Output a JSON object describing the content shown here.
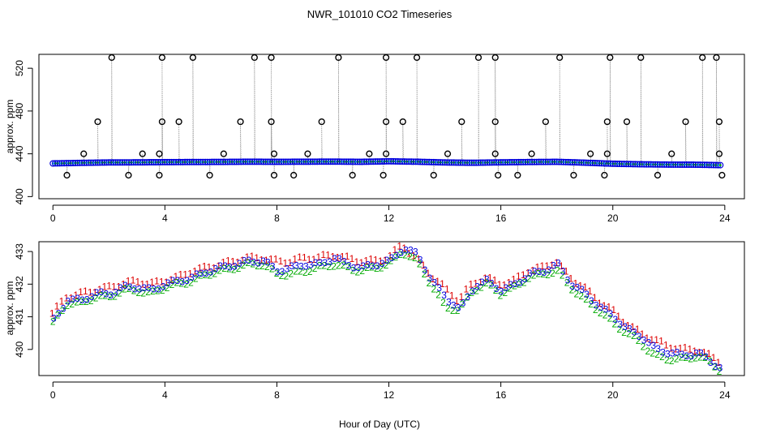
{
  "chart_data": {
    "title": "NWR_101010  CO2 Timeseries",
    "xlabel": "Hour of Day (UTC)",
    "panels": [
      {
        "id": "top",
        "type": "scatter",
        "ylabel": "approx. ppm",
        "xlim": [
          -0.5,
          24.7
        ],
        "ylim": [
          398,
          533
        ],
        "x_ticks": [
          0,
          4,
          8,
          12,
          16,
          20,
          24
        ],
        "y_ticks": [
          400,
          440,
          480,
          520
        ],
        "baseline": {
          "x": [
            0,
            1,
            2,
            3,
            4,
            5,
            6,
            7,
            8,
            9,
            10,
            11,
            12,
            13,
            14,
            15,
            16,
            17,
            18,
            19,
            20,
            21,
            22,
            23,
            23.8
          ],
          "y": [
            431.0,
            431.5,
            431.9,
            432.0,
            432.2,
            432.3,
            432.4,
            432.6,
            432.5,
            432.6,
            432.7,
            432.5,
            433.0,
            432.6,
            431.9,
            431.6,
            432.0,
            432.3,
            432.5,
            431.7,
            430.7,
            430.2,
            429.9,
            429.8,
            429.4
          ]
        },
        "spikes": [
          {
            "x": 0.5,
            "y": 420
          },
          {
            "x": 1.1,
            "y": 440
          },
          {
            "x": 1.6,
            "y": 470
          },
          {
            "x": 2.1,
            "y": 530
          },
          {
            "x": 2.7,
            "y": 420
          },
          {
            "x": 3.2,
            "y": 440
          },
          {
            "x": 3.8,
            "y": 420
          },
          {
            "x": 3.8,
            "y": 440
          },
          {
            "x": 3.9,
            "y": 470
          },
          {
            "x": 3.9,
            "y": 530
          },
          {
            "x": 4.5,
            "y": 470
          },
          {
            "x": 5.0,
            "y": 530
          },
          {
            "x": 5.6,
            "y": 420
          },
          {
            "x": 6.1,
            "y": 440
          },
          {
            "x": 6.7,
            "y": 470
          },
          {
            "x": 7.2,
            "y": 530
          },
          {
            "x": 7.8,
            "y": 530
          },
          {
            "x": 7.8,
            "y": 470
          },
          {
            "x": 7.9,
            "y": 440
          },
          {
            "x": 7.9,
            "y": 420
          },
          {
            "x": 8.6,
            "y": 420
          },
          {
            "x": 9.1,
            "y": 440
          },
          {
            "x": 9.6,
            "y": 470
          },
          {
            "x": 10.2,
            "y": 530
          },
          {
            "x": 10.7,
            "y": 420
          },
          {
            "x": 11.3,
            "y": 440
          },
          {
            "x": 11.8,
            "y": 420
          },
          {
            "x": 11.9,
            "y": 440
          },
          {
            "x": 11.9,
            "y": 470
          },
          {
            "x": 11.9,
            "y": 530
          },
          {
            "x": 12.5,
            "y": 470
          },
          {
            "x": 13.0,
            "y": 530
          },
          {
            "x": 13.6,
            "y": 420
          },
          {
            "x": 14.1,
            "y": 440
          },
          {
            "x": 14.6,
            "y": 470
          },
          {
            "x": 15.2,
            "y": 530
          },
          {
            "x": 15.8,
            "y": 530
          },
          {
            "x": 15.8,
            "y": 470
          },
          {
            "x": 15.8,
            "y": 440
          },
          {
            "x": 15.9,
            "y": 420
          },
          {
            "x": 16.6,
            "y": 420
          },
          {
            "x": 17.1,
            "y": 440
          },
          {
            "x": 17.6,
            "y": 470
          },
          {
            "x": 18.1,
            "y": 530
          },
          {
            "x": 18.6,
            "y": 420
          },
          {
            "x": 19.2,
            "y": 440
          },
          {
            "x": 19.7,
            "y": 420
          },
          {
            "x": 19.8,
            "y": 440
          },
          {
            "x": 19.8,
            "y": 470
          },
          {
            "x": 19.9,
            "y": 530
          },
          {
            "x": 20.5,
            "y": 470
          },
          {
            "x": 21.0,
            "y": 530
          },
          {
            "x": 21.6,
            "y": 420
          },
          {
            "x": 22.1,
            "y": 440
          },
          {
            "x": 22.6,
            "y": 470
          },
          {
            "x": 23.2,
            "y": 530
          },
          {
            "x": 23.7,
            "y": 530
          },
          {
            "x": 23.8,
            "y": 470
          },
          {
            "x": 23.8,
            "y": 440
          },
          {
            "x": 23.9,
            "y": 420
          }
        ]
      },
      {
        "id": "bottom",
        "type": "scatter",
        "ylabel": "approx. ppm",
        "xlim": [
          -0.5,
          24.7
        ],
        "ylim": [
          429.2,
          433.3
        ],
        "x_ticks": [
          0,
          4,
          8,
          12,
          16,
          20,
          24
        ],
        "y_ticks": [
          430,
          431,
          432,
          433
        ],
        "series": [
          {
            "name": "1",
            "color": "#dd0000",
            "x": [
              0,
              0.5,
              1,
              1.5,
              2,
              2.5,
              3,
              3.5,
              4,
              4.5,
              5,
              5.5,
              6,
              6.5,
              7,
              7.5,
              8,
              8.5,
              9,
              9.5,
              10,
              10.5,
              11,
              11.5,
              12,
              12.5,
              13,
              13.5,
              14,
              14.5,
              15,
              15.5,
              16,
              16.5,
              17,
              17.5,
              18,
              18.5,
              19,
              19.5,
              20,
              20.5,
              21,
              21.5,
              22,
              22.5,
              23,
              23.5,
              23.9
            ],
            "y": [
              431.1,
              431.6,
              431.7,
              431.8,
              431.9,
              432.0,
              432.1,
              432.0,
              432.1,
              432.2,
              432.4,
              432.5,
              432.6,
              432.7,
              432.8,
              432.8,
              432.7,
              432.7,
              432.8,
              432.8,
              432.9,
              432.8,
              432.7,
              432.7,
              432.8,
              433.2,
              432.8,
              432.3,
              431.9,
              431.5,
              432.0,
              432.2,
              432.0,
              432.1,
              432.4,
              432.5,
              432.7,
              432.2,
              431.9,
              431.5,
              431.2,
              430.8,
              430.5,
              430.3,
              430.1,
              430.0,
              430.0,
              429.8,
              429.6
            ]
          },
          {
            "name": "2",
            "color": "#00aa00",
            "x": [
              0,
              0.5,
              1,
              1.5,
              2,
              2.5,
              3,
              3.5,
              4,
              4.5,
              5,
              5.5,
              6,
              6.5,
              7,
              7.5,
              8,
              8.5,
              9,
              9.5,
              10,
              10.5,
              11,
              11.5,
              12,
              12.5,
              13,
              13.5,
              14,
              14.5,
              15,
              15.5,
              16,
              16.5,
              17,
              17.5,
              18,
              18.5,
              19,
              19.5,
              20,
              20.5,
              21,
              21.5,
              22,
              22.5,
              23,
              23.5,
              23.9
            ],
            "y": [
              430.8,
              431.4,
              431.4,
              431.6,
              431.6,
              431.8,
              431.8,
              431.7,
              431.9,
              432.0,
              432.1,
              432.3,
              432.4,
              432.5,
              432.6,
              432.6,
              432.3,
              432.3,
              432.4,
              432.5,
              432.6,
              432.5,
              432.4,
              432.5,
              432.6,
              433.0,
              432.7,
              432.0,
              431.3,
              431.2,
              431.8,
              432.0,
              431.7,
              431.9,
              432.2,
              432.3,
              432.4,
              431.9,
              431.5,
              431.2,
              430.8,
              430.5,
              430.2,
              429.8,
              429.7,
              429.7,
              429.8,
              429.6,
              429.3
            ]
          },
          {
            "name": "3",
            "color": "#0000dd",
            "x": [
              0,
              0.5,
              1,
              1.5,
              2,
              2.5,
              3,
              3.5,
              4,
              4.5,
              5,
              5.5,
              6,
              6.5,
              7,
              7.5,
              8,
              8.5,
              9,
              9.5,
              10,
              10.5,
              11,
              11.5,
              12,
              12.5,
              13,
              13.5,
              14,
              14.5,
              15,
              15.5,
              16,
              16.5,
              17,
              17.5,
              18,
              18.5,
              19,
              19.5,
              20,
              20.5,
              21,
              21.5,
              22,
              22.5,
              23,
              23.5,
              23.9
            ],
            "y": [
              430.9,
              431.5,
              431.5,
              431.7,
              431.7,
              431.9,
              431.9,
              431.8,
              432.0,
              432.1,
              432.2,
              432.4,
              432.5,
              432.6,
              432.7,
              432.7,
              432.4,
              432.5,
              432.6,
              432.6,
              432.8,
              432.6,
              432.5,
              432.6,
              432.7,
              433.1,
              432.9,
              432.1,
              431.6,
              431.2,
              431.9,
              432.1,
              431.8,
              432.0,
              432.3,
              432.4,
              432.6,
              432.0,
              431.7,
              431.3,
              431.0,
              430.6,
              430.4,
              430.0,
              429.9,
              429.8,
              429.9,
              429.6,
              429.4
            ]
          }
        ]
      }
    ]
  }
}
